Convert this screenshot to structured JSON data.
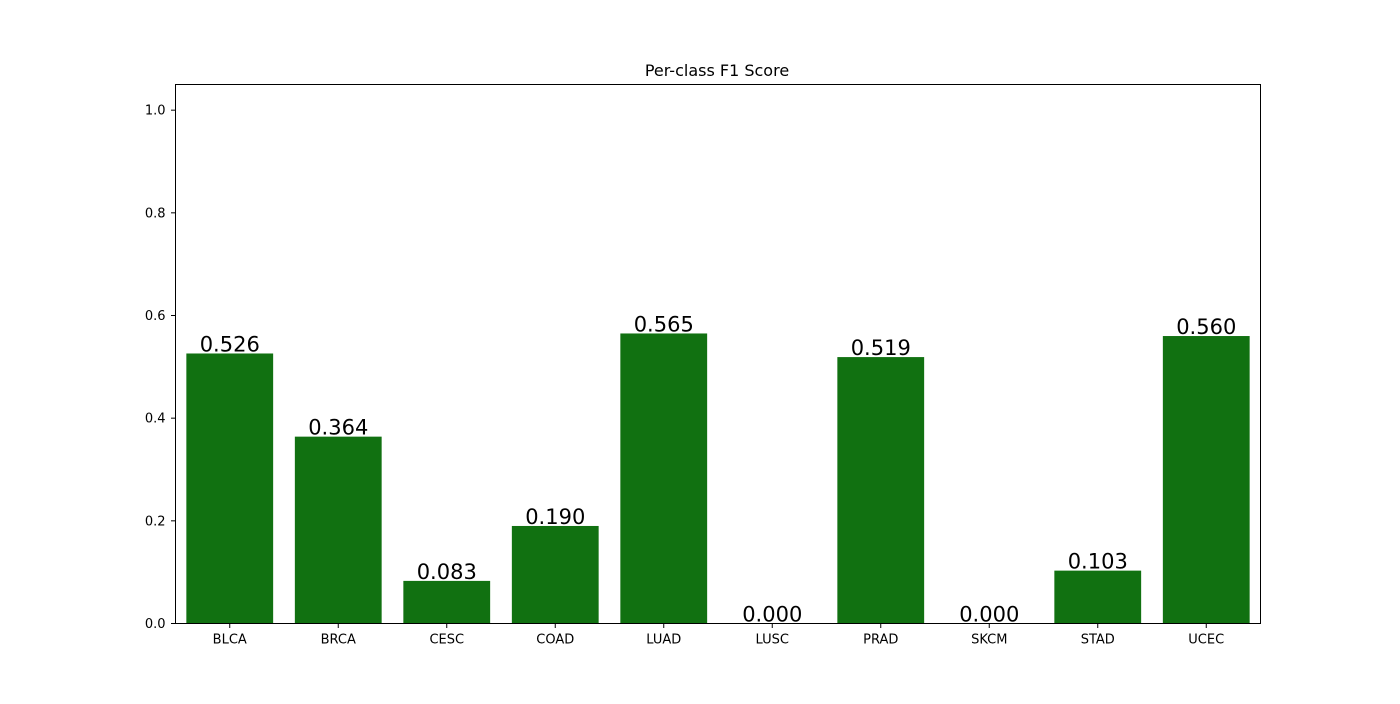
{
  "chart_data": {
    "type": "bar",
    "title": "Per-class F1 Score",
    "xlabel": "",
    "ylabel": "",
    "categories": [
      "BLCA",
      "BRCA",
      "CESC",
      "COAD",
      "LUAD",
      "LUSC",
      "PRAD",
      "SKCM",
      "STAD",
      "UCEC"
    ],
    "values": [
      0.526,
      0.364,
      0.083,
      0.19,
      0.565,
      0.0,
      0.519,
      0.0,
      0.103,
      0.56
    ],
    "value_labels": [
      "0.526",
      "0.364",
      "0.083",
      "0.190",
      "0.565",
      "0.000",
      "0.519",
      "0.000",
      "0.103",
      "0.560"
    ],
    "yticks": [
      0.0,
      0.2,
      0.4,
      0.6,
      0.8,
      1.0
    ],
    "ytick_labels": [
      "0.0",
      "0.2",
      "0.4",
      "0.6",
      "0.8",
      "1.0"
    ],
    "ylim": [
      0,
      1.05
    ],
    "grid": false,
    "legend": "none",
    "bar_color": "#117111"
  }
}
